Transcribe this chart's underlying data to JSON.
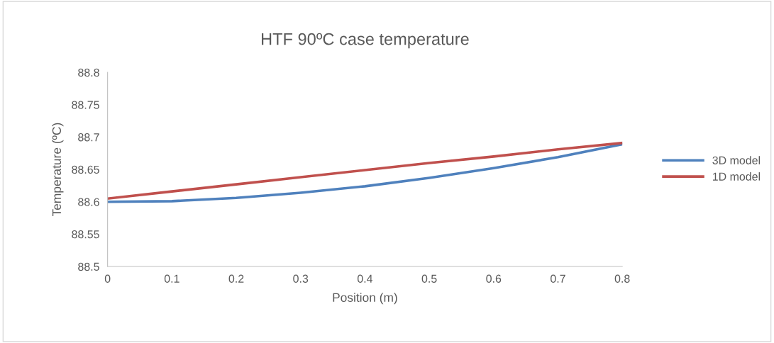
{
  "chart_data": {
    "type": "line",
    "title": "HTF 90ºC case temperature",
    "xlabel": "Position (m)",
    "ylabel": "Temperature (ºC)",
    "x": [
      0,
      0.1,
      0.2,
      0.3,
      0.4,
      0.5,
      0.6,
      0.7,
      0.8
    ],
    "series": [
      {
        "name": "3D model",
        "color": "#4f81bd",
        "values": [
          88.6,
          88.601,
          88.606,
          88.614,
          88.624,
          88.637,
          88.652,
          88.669,
          88.689
        ]
      },
      {
        "name": "1D model",
        "color": "#c0504d",
        "values": [
          88.605,
          88.616,
          88.627,
          88.638,
          88.649,
          88.66,
          88.67,
          88.681,
          88.691
        ]
      }
    ],
    "xlim": [
      0,
      0.8
    ],
    "xticks": [
      0,
      0.1,
      0.2,
      0.3,
      0.4,
      0.5,
      0.6,
      0.7,
      0.8
    ],
    "ylim": [
      88.5,
      88.8
    ],
    "yticks": [
      88.5,
      88.55,
      88.6,
      88.65,
      88.7,
      88.75,
      88.8
    ],
    "grid": false,
    "legend": "right",
    "marker": "none",
    "line_style": "solid"
  }
}
